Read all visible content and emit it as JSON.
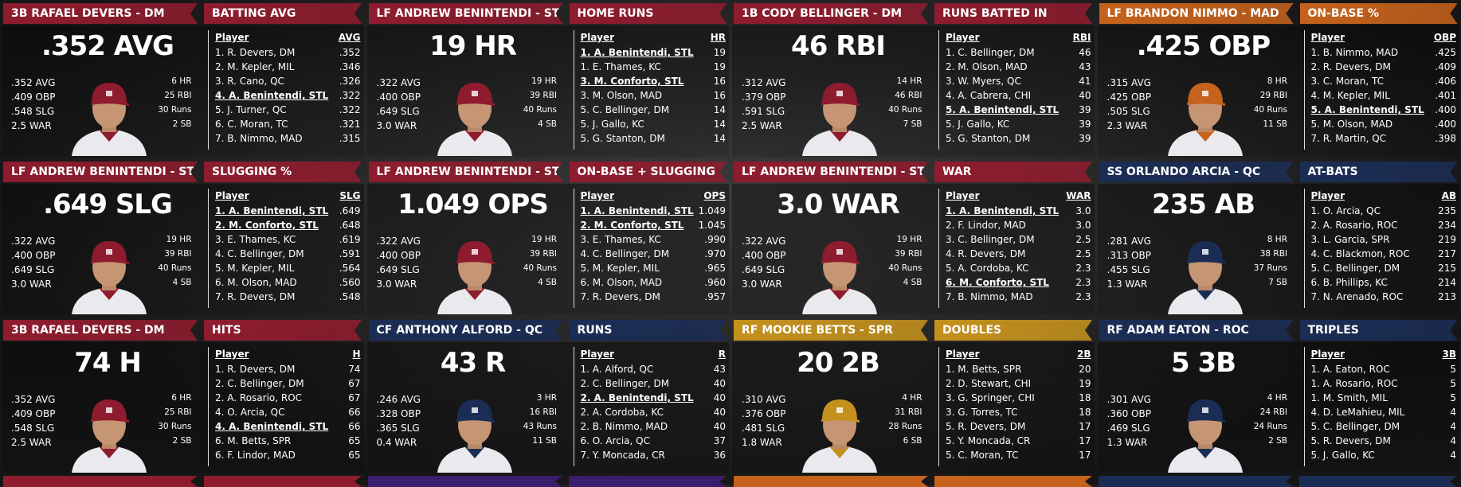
{
  "panels": [
    {
      "player_header": "3B RAFAEL DEVERS - DM",
      "stat_header": "BATTING AVG",
      "color": "#8e1c2e",
      "headline": ".352 AVG",
      "slash_line": [
        ".352 AVG",
        ".409 OBP",
        ".548 SLG",
        "2.5 WAR"
      ],
      "counting_stats": [
        "6 HR",
        "25 RBI",
        "30 Runs",
        "2 SB"
      ],
      "table": {
        "columns": [
          "Player",
          "AVG"
        ],
        "rows": [
          {
            "player": "1. R. Devers, DM",
            "value": ".352"
          },
          {
            "player": "2. M. Kepler, MIL",
            "value": ".346"
          },
          {
            "player": "3. R. Cano, QC",
            "value": ".326"
          },
          {
            "player": "4. A. Benintendi, STL",
            "value": ".322",
            "highlighted": true
          },
          {
            "player": "5. J. Turner, QC",
            "value": ".322"
          },
          {
            "player": "6. C. Moran, TC",
            "value": ".321"
          },
          {
            "player": "7. B. Nimmo, MAD",
            "value": ".315"
          }
        ]
      }
    },
    {
      "player_header": "LF ANDREW BENINTENDI - STL",
      "stat_header": "HOME RUNS",
      "color": "#8e1c2e",
      "headline": "19 HR",
      "slash_line": [
        ".322 AVG",
        ".400 OBP",
        ".649 SLG",
        "3.0 WAR"
      ],
      "counting_stats": [
        "19 HR",
        "39 RBI",
        "40 Runs",
        "4 SB"
      ],
      "table": {
        "columns": [
          "Player",
          "HR"
        ],
        "rows": [
          {
            "player": "1. A. Benintendi, STL",
            "value": "19",
            "highlighted": true
          },
          {
            "player": "1. E. Thames, KC",
            "value": "19"
          },
          {
            "player": "3. M. Conforto, STL",
            "value": "16",
            "highlighted": true
          },
          {
            "player": "3. M. Olson, MAD",
            "value": "16"
          },
          {
            "player": "5. C. Bellinger, DM",
            "value": "14"
          },
          {
            "player": "5. J. Gallo, KC",
            "value": "14"
          },
          {
            "player": "5. G. Stanton, DM",
            "value": "14"
          }
        ]
      }
    },
    {
      "player_header": "1B CODY BELLINGER - DM",
      "stat_header": "RUNS BATTED IN",
      "color": "#8e1c2e",
      "headline": "46 RBI",
      "slash_line": [
        ".312 AVG",
        ".379 OBP",
        ".591 SLG",
        "2.5 WAR"
      ],
      "counting_stats": [
        "14 HR",
        "46 RBI",
        "40 Runs",
        "7 SB"
      ],
      "table": {
        "columns": [
          "Player",
          "RBI"
        ],
        "rows": [
          {
            "player": "1. C. Bellinger, DM",
            "value": "46"
          },
          {
            "player": "2. M. Olson, MAD",
            "value": "43"
          },
          {
            "player": "3. W. Myers, QC",
            "value": "41"
          },
          {
            "player": "4. A. Cabrera, CHI",
            "value": "40"
          },
          {
            "player": "5. A. Benintendi, STL",
            "value": "39",
            "highlighted": true
          },
          {
            "player": "5. J. Gallo, KC",
            "value": "39"
          },
          {
            "player": "5. G. Stanton, DM",
            "value": "39"
          }
        ]
      }
    },
    {
      "player_header": "LF BRANDON NIMMO - MAD",
      "stat_header": "ON-BASE %",
      "color": "#c5621c",
      "headline": ".425 OBP",
      "slash_line": [
        ".315 AVG",
        ".425 OBP",
        ".505 SLG",
        "2.3 WAR"
      ],
      "counting_stats": [
        "8 HR",
        "29 RBI",
        "40 Runs",
        "11 SB"
      ],
      "table": {
        "columns": [
          "Player",
          "OBP"
        ],
        "rows": [
          {
            "player": "1. B. Nimmo, MAD",
            "value": ".425"
          },
          {
            "player": "2. R. Devers, DM",
            "value": ".409"
          },
          {
            "player": "3. C. Moran, TC",
            "value": ".406"
          },
          {
            "player": "4. M. Kepler, MIL",
            "value": ".401"
          },
          {
            "player": "5. A. Benintendi, STL",
            "value": ".400",
            "highlighted": true
          },
          {
            "player": "5. M. Olson, MAD",
            "value": ".400"
          },
          {
            "player": "7. R. Martin, QC",
            "value": ".398"
          }
        ]
      }
    },
    {
      "player_header": "LF ANDREW BENINTENDI - STL",
      "stat_header": "SLUGGING %",
      "color": "#8e1c2e",
      "headline": ".649 SLG",
      "slash_line": [
        ".322 AVG",
        ".400 OBP",
        ".649 SLG",
        "3.0 WAR"
      ],
      "counting_stats": [
        "19 HR",
        "39 RBI",
        "40 Runs",
        "4 SB"
      ],
      "table": {
        "columns": [
          "Player",
          "SLG"
        ],
        "rows": [
          {
            "player": "1. A. Benintendi, STL",
            "value": ".649",
            "highlighted": true
          },
          {
            "player": "2. M. Conforto, STL",
            "value": ".648",
            "highlighted": true
          },
          {
            "player": "3. E. Thames, KC",
            "value": ".619"
          },
          {
            "player": "4. C. Bellinger, DM",
            "value": ".591"
          },
          {
            "player": "5. M. Kepler, MIL",
            "value": ".564"
          },
          {
            "player": "6. M. Olson, MAD",
            "value": ".560"
          },
          {
            "player": "7. R. Devers, DM",
            "value": ".548"
          }
        ]
      }
    },
    {
      "player_header": "LF ANDREW BENINTENDI - STL",
      "stat_header": "ON-BASE + SLUGGING",
      "color": "#8e1c2e",
      "headline": "1.049 OPS",
      "slash_line": [
        ".322 AVG",
        ".400 OBP",
        ".649 SLG",
        "3.0 WAR"
      ],
      "counting_stats": [
        "19 HR",
        "39 RBI",
        "40 Runs",
        "4 SB"
      ],
      "table": {
        "columns": [
          "Player",
          "OPS"
        ],
        "rows": [
          {
            "player": "1. A. Benintendi, STL",
            "value": "1.049",
            "highlighted": true
          },
          {
            "player": "2. M. Conforto, STL",
            "value": "1.045",
            "highlighted": true
          },
          {
            "player": "3. E. Thames, KC",
            "value": ".990"
          },
          {
            "player": "4. C. Bellinger, DM",
            "value": ".970"
          },
          {
            "player": "5. M. Kepler, MIL",
            "value": ".965"
          },
          {
            "player": "6. M. Olson, MAD",
            "value": ".960"
          },
          {
            "player": "7. R. Devers, DM",
            "value": ".957"
          }
        ]
      }
    },
    {
      "player_header": "LF ANDREW BENINTENDI - STL",
      "stat_header": "WAR",
      "color": "#8e1c2e",
      "headline": "3.0 WAR",
      "slash_line": [
        ".322 AVG",
        ".400 OBP",
        ".649 SLG",
        "3.0 WAR"
      ],
      "counting_stats": [
        "19 HR",
        "39 RBI",
        "40 Runs",
        "4 SB"
      ],
      "table": {
        "columns": [
          "Player",
          "WAR"
        ],
        "rows": [
          {
            "player": "1. A. Benintendi, STL",
            "value": "3.0",
            "highlighted": true
          },
          {
            "player": "2. F. Lindor, MAD",
            "value": "3.0"
          },
          {
            "player": "3. C. Bellinger, DM",
            "value": "2.5"
          },
          {
            "player": "4. R. Devers, DM",
            "value": "2.5"
          },
          {
            "player": "5. A. Cordoba, KC",
            "value": "2.3"
          },
          {
            "player": "6. M. Conforto, STL",
            "value": "2.3",
            "highlighted": true
          },
          {
            "player": "7. B. Nimmo, MAD",
            "value": "2.3"
          }
        ]
      }
    },
    {
      "player_header": "SS ORLANDO ARCIA - QC",
      "stat_header": "AT-BATS",
      "color": "#1b2d55",
      "headline": "235 AB",
      "slash_line": [
        ".281 AVG",
        ".313 OBP",
        ".455 SLG",
        "1.3 WAR"
      ],
      "counting_stats": [
        "8 HR",
        "38 RBI",
        "37 Runs",
        "7 SB"
      ],
      "table": {
        "columns": [
          "Player",
          "AB"
        ],
        "rows": [
          {
            "player": "1. O. Arcia, QC",
            "value": "235"
          },
          {
            "player": "2. A. Rosario, ROC",
            "value": "234"
          },
          {
            "player": "3. L. Garcia, SPR",
            "value": "219"
          },
          {
            "player": "4. C. Blackmon, ROC",
            "value": "217"
          },
          {
            "player": "5. C. Bellinger, DM",
            "value": "215"
          },
          {
            "player": "6. B. Phillips, KC",
            "value": "214"
          },
          {
            "player": "7. N. Arenado, ROC",
            "value": "213"
          }
        ]
      }
    },
    {
      "player_header": "3B RAFAEL DEVERS - DM",
      "stat_header": "HITS",
      "color": "#8e1c2e",
      "headline": "74 H",
      "slash_line": [
        ".352 AVG",
        ".409 OBP",
        ".548 SLG",
        "2.5 WAR"
      ],
      "counting_stats": [
        "6 HR",
        "25 RBI",
        "30 Runs",
        "2 SB"
      ],
      "table": {
        "columns": [
          "Player",
          "H"
        ],
        "rows": [
          {
            "player": "1. R. Devers, DM",
            "value": "74"
          },
          {
            "player": "2. C. Bellinger, DM",
            "value": "67"
          },
          {
            "player": "2. A. Rosario, ROC",
            "value": "67"
          },
          {
            "player": "4. O. Arcia, QC",
            "value": "66"
          },
          {
            "player": "4. A. Benintendi, STL",
            "value": "66",
            "highlighted": true
          },
          {
            "player": "6. M. Betts, SPR",
            "value": "65"
          },
          {
            "player": "6. F. Lindor, MAD",
            "value": "65"
          }
        ]
      }
    },
    {
      "player_header": "CF ANTHONY ALFORD - QC",
      "stat_header": "RUNS",
      "color": "#1b2d55",
      "headline": "43 R",
      "slash_line": [
        ".246 AVG",
        ".328 OBP",
        ".365 SLG",
        "0.4 WAR"
      ],
      "counting_stats": [
        "3 HR",
        "16 RBI",
        "43 Runs",
        "11 SB"
      ],
      "table": {
        "columns": [
          "Player",
          "R"
        ],
        "rows": [
          {
            "player": "1. A. Alford, QC",
            "value": "43"
          },
          {
            "player": "2. C. Bellinger, DM",
            "value": "40"
          },
          {
            "player": "2. A. Benintendi, STL",
            "value": "40",
            "highlighted": true
          },
          {
            "player": "2. A. Cordoba, KC",
            "value": "40"
          },
          {
            "player": "2. B. Nimmo, MAD",
            "value": "40"
          },
          {
            "player": "6. O. Arcia, QC",
            "value": "37"
          },
          {
            "player": "7. Y. Moncada, CR",
            "value": "36"
          }
        ]
      }
    },
    {
      "player_header": "RF MOOKIE BETTS - SPR",
      "stat_header": "DOUBLES",
      "color": "#c4911d",
      "headline": "20 2B",
      "slash_line": [
        ".310 AVG",
        ".376 OBP",
        ".481 SLG",
        "1.8 WAR"
      ],
      "counting_stats": [
        "4 HR",
        "31 RBI",
        "28 Runs",
        "6 SB"
      ],
      "table": {
        "columns": [
          "Player",
          "2B"
        ],
        "rows": [
          {
            "player": "1. M. Betts, SPR",
            "value": "20"
          },
          {
            "player": "2. D. Stewart, CHI",
            "value": "19"
          },
          {
            "player": "3. G. Springer, CHI",
            "value": "18"
          },
          {
            "player": "3. G. Torres, TC",
            "value": "18"
          },
          {
            "player": "5. R. Devers, DM",
            "value": "17"
          },
          {
            "player": "5. Y. Moncada, CR",
            "value": "17"
          },
          {
            "player": "5. C. Moran, TC",
            "value": "17"
          }
        ]
      }
    },
    {
      "player_header": "RF ADAM EATON - ROC",
      "stat_header": "TRIPLES",
      "color": "#1b2d55",
      "headline": "5 3B",
      "slash_line": [
        ".301 AVG",
        ".360 OBP",
        ".469 SLG",
        "1.3 WAR"
      ],
      "counting_stats": [
        "4 HR",
        "24 RBI",
        "24 Runs",
        "2 SB"
      ],
      "table": {
        "columns": [
          "Player",
          "3B"
        ],
        "rows": [
          {
            "player": "1. A. Eaton, ROC",
            "value": "5"
          },
          {
            "player": "1. A. Rosario, ROC",
            "value": "5"
          },
          {
            "player": "1. M. Smith, MIL",
            "value": "5"
          },
          {
            "player": "4. D. LeMahieu, MIL",
            "value": "4"
          },
          {
            "player": "5. C. Bellinger, DM",
            "value": "4"
          },
          {
            "player": "5. R. Devers, DM",
            "value": "4"
          },
          {
            "player": "5. J. Gallo, KC",
            "value": "4"
          }
        ]
      }
    }
  ]
}
